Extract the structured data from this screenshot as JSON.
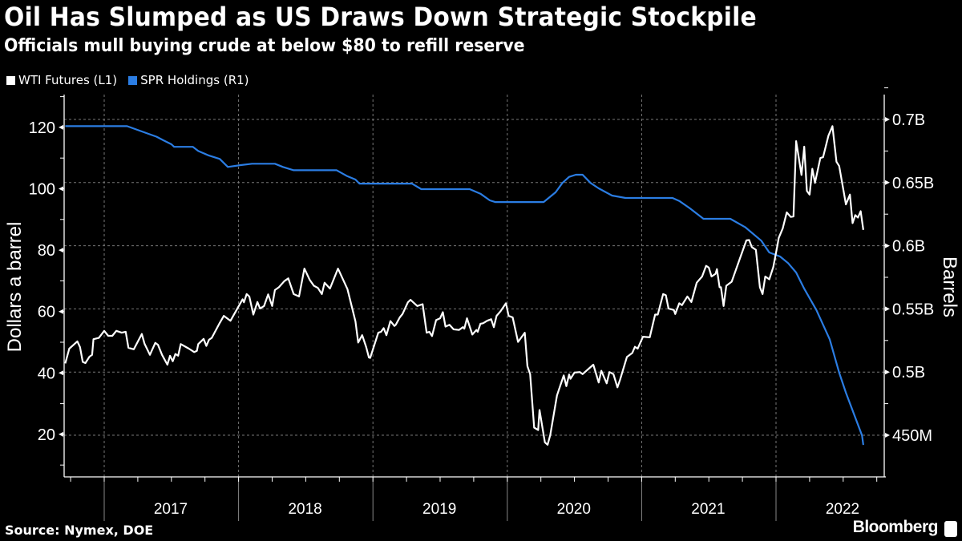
{
  "chart_data": {
    "type": "line",
    "title": "Oil Has Slumped as US Draws Down Strategic Stockpile",
    "subtitle": "Officials mull buying crude at below $80 to refill reserve",
    "source": "Source: Nymex, DOE",
    "brand": "Bloomberg",
    "legend_placement": "top-left",
    "grid": true,
    "x_ticks": [
      "2017",
      "2018",
      "2019",
      "2020",
      "2021",
      "2022"
    ],
    "ylabel_left": "Dollars a barrel",
    "ylabel_right": "Barrels",
    "ylim_left": [
      10,
      130
    ],
    "yticks_left": [
      20,
      40,
      60,
      80,
      100,
      120
    ],
    "ytick_labels_left": [
      "20",
      "40",
      "60",
      "80",
      "100",
      "120"
    ],
    "ylim_right": [
      430,
      735
    ],
    "yticks_right": [
      450,
      500,
      550,
      600,
      650,
      700
    ],
    "ytick_labels_right": [
      "450M",
      "0.5B",
      "0.55B",
      "0.6B",
      "0.65B",
      "0.7B"
    ],
    "series": [
      {
        "name": "WTI Futures (L1)",
        "axis": "left",
        "unit": "USD/barrel",
        "color": "#ffffff",
        "x": [
          2016.71,
          2016.74,
          2016.8,
          2016.82,
          2016.84,
          2016.86,
          2016.89,
          2016.91,
          2016.92,
          2016.96,
          2017.0,
          2017.03,
          2017.06,
          2017.09,
          2017.13,
          2017.16,
          2017.18,
          2017.22,
          2017.28,
          2017.3,
          2017.34,
          2017.38,
          2017.4,
          2017.43,
          2017.47,
          2017.49,
          2017.51,
          2017.53,
          2017.55,
          2017.57,
          2017.63,
          2017.67,
          2017.69,
          2017.7,
          2017.74,
          2017.76,
          2017.78,
          2017.8,
          2017.86,
          2017.89,
          2017.94,
          2017.98,
          2018.03,
          2018.04,
          2018.06,
          2018.08,
          2018.11,
          2018.14,
          2018.16,
          2018.19,
          2018.22,
          2018.25,
          2018.27,
          2018.3,
          2018.34,
          2018.37,
          2018.41,
          2018.45,
          2018.49,
          2018.53,
          2018.56,
          2018.59,
          2018.62,
          2018.64,
          2018.68,
          2018.74,
          2018.81,
          2018.87,
          2018.89,
          2018.92,
          2018.95,
          2018.97,
          2018.98,
          2019.04,
          2019.06,
          2019.08,
          2019.1,
          2019.13,
          2019.16,
          2019.17,
          2019.2,
          2019.22,
          2019.26,
          2019.28,
          2019.33,
          2019.37,
          2019.4,
          2019.42,
          2019.44,
          2019.47,
          2019.5,
          2019.52,
          2019.54,
          2019.57,
          2019.6,
          2019.64,
          2019.67,
          2019.68,
          2019.7,
          2019.74,
          2019.77,
          2019.78,
          2019.8,
          2019.82,
          2019.85,
          2019.88,
          2019.9,
          2019.92,
          2019.95,
          2019.99,
          2020.01,
          2020.04,
          2020.08,
          2020.13,
          2020.15,
          2020.17,
          2020.2,
          2020.23,
          2020.24,
          2020.28,
          2020.3,
          2020.32,
          2020.37,
          2020.42,
          2020.44,
          2020.46,
          2020.47,
          2020.5,
          2020.54,
          2020.56,
          2020.64,
          2020.68,
          2020.7,
          2020.74,
          2020.76,
          2020.79,
          2020.82,
          2020.84,
          2020.89,
          2020.93,
          2020.95,
          2020.97,
          2021.01,
          2021.06,
          2021.1,
          2021.12,
          2021.16,
          2021.18,
          2021.2,
          2021.24,
          2021.25,
          2021.28,
          2021.3,
          2021.34,
          2021.37,
          2021.41,
          2021.45,
          2021.48,
          2021.5,
          2021.52,
          2021.55,
          2021.56,
          2021.58,
          2021.59,
          2021.61,
          2021.63,
          2021.67,
          2021.73,
          2021.78,
          2021.8,
          2021.82,
          2021.85,
          2021.88,
          2021.9,
          2021.92,
          2021.95,
          2021.98,
          2022.01,
          2022.02,
          2022.05,
          2022.08,
          2022.11,
          2022.13,
          2022.15,
          2022.19,
          2022.21,
          2022.23,
          2022.25,
          2022.27,
          2022.29,
          2022.33,
          2022.35,
          2022.39,
          2022.42,
          2022.45,
          2022.47,
          2022.52,
          2022.55,
          2022.57,
          2022.59,
          2022.61,
          2022.63,
          2022.65
        ],
        "values": [
          43.1,
          47.9,
          50.3,
          48.4,
          43.6,
          43.2,
          45.3,
          45.9,
          51.0,
          51.4,
          53.7,
          52.1,
          52.1,
          53.7,
          53.1,
          53.4,
          48.2,
          47.7,
          52.7,
          49.5,
          45.9,
          49.8,
          49.2,
          45.9,
          42.7,
          45.6,
          43.8,
          46.2,
          45.6,
          49.4,
          47.9,
          46.8,
          47.2,
          49.4,
          51.1,
          48.8,
          50.8,
          51.4,
          56.3,
          58.6,
          57.0,
          60.1,
          64.0,
          63.0,
          65.7,
          64.9,
          59.0,
          63.1,
          61.0,
          61.8,
          65.6,
          61.8,
          67.0,
          67.9,
          69.9,
          70.8,
          65.7,
          64.9,
          74.0,
          70.3,
          68.4,
          67.7,
          65.7,
          69.4,
          67.5,
          74.0,
          67.3,
          56.8,
          49.9,
          52.3,
          48.4,
          45.0,
          44.9,
          53.1,
          53.4,
          54.6,
          52.3,
          56.9,
          55.3,
          55.7,
          58.1,
          59.2,
          63.0,
          63.8,
          61.8,
          62.4,
          53.1,
          53.4,
          52.0,
          57.2,
          57.8,
          59.8,
          55.1,
          55.7,
          54.2,
          54.0,
          54.9,
          54.4,
          57.8,
          52.5,
          54.0,
          53.4,
          56.0,
          56.2,
          57.0,
          57.5,
          54.9,
          58.6,
          60.1,
          62.7,
          58.6,
          58.1,
          50.1,
          53.1,
          42.2,
          39.6,
          22.2,
          21.4,
          27.9,
          17.4,
          16.6,
          19.8,
          32.7,
          39.2,
          35.7,
          39.5,
          38.1,
          40.1,
          40.3,
          39.6,
          42.7,
          36.9,
          40.7,
          36.6,
          40.3,
          39.6,
          35.3,
          37.9,
          45.2,
          46.5,
          48.5,
          47.9,
          51.8,
          51.6,
          59.0,
          59.0,
          65.7,
          65.3,
          61.0,
          60.5,
          59.2,
          62.7,
          62.1,
          64.9,
          63.1,
          69.4,
          71.4,
          74.9,
          74.3,
          71.4,
          72.3,
          73.8,
          67.9,
          67.9,
          61.8,
          68.4,
          69.7,
          77.1,
          83.2,
          83.3,
          81.0,
          80.1,
          67.9,
          65.7,
          71.4,
          70.5,
          74.5,
          81.5,
          84.0,
          87.1,
          92.3,
          90.8,
          91.0,
          115.5,
          104.5,
          113.7,
          99.3,
          98.1,
          106.5,
          101.9,
          110.0,
          110.3,
          117.3,
          120.4,
          108.8,
          107.4,
          94.9,
          98.1,
          88.8,
          91.4,
          90.6,
          92.7,
          86.6
        ]
      },
      {
        "name": "SPR Holdings (R1)",
        "axis": "right",
        "unit": "million barrels",
        "color": "#2b7de3",
        "x": [
          2016.71,
          2017.17,
          2017.28,
          2017.39,
          2017.44,
          2017.5,
          2017.52,
          2017.66,
          2017.7,
          2017.78,
          2017.86,
          2017.92,
          2018.01,
          2018.1,
          2018.27,
          2018.33,
          2018.41,
          2018.73,
          2018.81,
          2018.87,
          2018.9,
          2019.29,
          2019.36,
          2019.72,
          2019.8,
          2019.87,
          2019.91,
          2020.27,
          2020.36,
          2020.41,
          2020.46,
          2020.51,
          2020.56,
          2020.62,
          2020.68,
          2020.78,
          2020.88,
          2021.23,
          2021.28,
          2021.36,
          2021.46,
          2021.66,
          2021.77,
          2021.89,
          2021.95,
          2022.03,
          2022.09,
          2022.15,
          2022.21,
          2022.3,
          2022.4,
          2022.47,
          2022.52,
          2022.64,
          2022.65
        ],
        "values": [
          694.7,
          694.7,
          690.5,
          686.3,
          683.5,
          680.3,
          678.3,
          678.3,
          675.0,
          671.4,
          668.7,
          662.4,
          663.8,
          664.9,
          664.9,
          662.4,
          659.8,
          659.8,
          655.0,
          652.4,
          649.2,
          649.2,
          644.8,
          644.8,
          641.2,
          635.9,
          634.6,
          634.6,
          642.3,
          649.7,
          654.5,
          656.2,
          656.2,
          649.7,
          645.4,
          639.7,
          637.8,
          637.8,
          635.5,
          629.6,
          621.3,
          621.3,
          614.7,
          604.0,
          594.7,
          591.5,
          586.2,
          578.8,
          566.0,
          549.2,
          525.9,
          499.5,
          483.6,
          449.8,
          442.3
        ]
      }
    ]
  }
}
